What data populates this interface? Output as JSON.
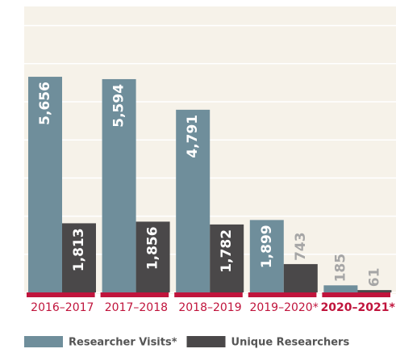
{
  "chart_data": {
    "type": "bar",
    "categories": [
      "2016–2017",
      "2017–2018",
      "2018–2019",
      "2019–2020*",
      "2020–2021*"
    ],
    "series": [
      {
        "name": "Researcher Visits*",
        "color": "#6f8e9b",
        "values": [
          5656,
          5594,
          4791,
          1899,
          185
        ],
        "value_labels": [
          "5,656",
          "5,594",
          "4,791",
          "1,899",
          "185"
        ]
      },
      {
        "name": "Unique Researchers",
        "color": "#4a4849",
        "values": [
          1813,
          1856,
          1782,
          743,
          61
        ],
        "value_labels": [
          "1,813",
          "1,856",
          "1,782",
          "743",
          "61"
        ]
      }
    ],
    "ylim": [
      0,
      7500
    ],
    "yticks": [
      0,
      1000,
      2000,
      3000,
      4000,
      5000,
      6000,
      7000
    ],
    "grid": true
  }
}
